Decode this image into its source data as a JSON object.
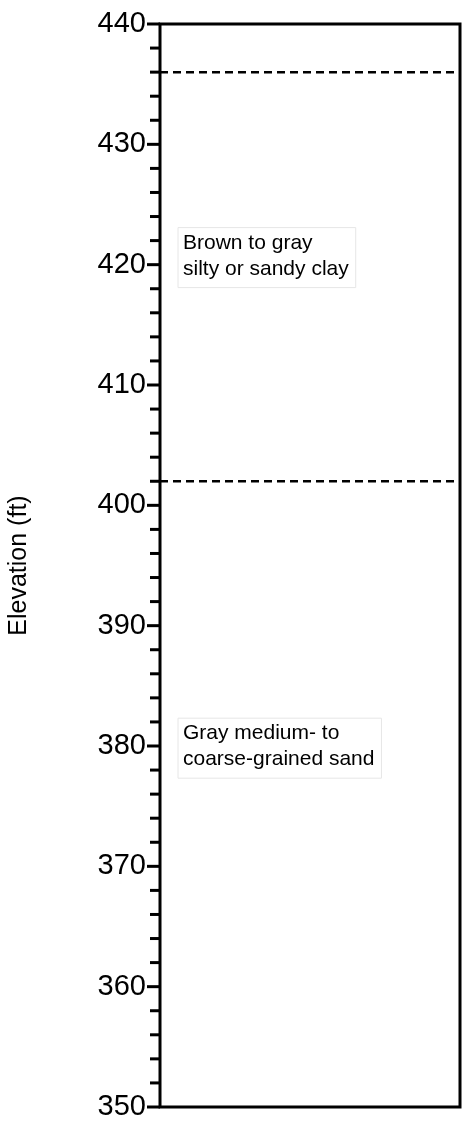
{
  "chart_data": {
    "type": "bar",
    "ylabel": "Elevation (ft)",
    "categories": [
      null
    ],
    "values": [
      null
    ],
    "ylim": [
      350,
      440
    ],
    "yticks": [
      350,
      {
        "value": 352,
        "label": null
      },
      {
        "value": 354,
        "label": null
      },
      {
        "value": 356,
        "label": null
      },
      {
        "value": 358,
        "label": null
      },
      360,
      {
        "value": 362,
        "label": null
      },
      {
        "value": 364,
        "label": null
      },
      {
        "value": 366,
        "label": null
      },
      {
        "value": 368,
        "label": null
      },
      370,
      {
        "value": 372,
        "label": null
      },
      {
        "value": 374,
        "label": null
      },
      {
        "value": 376,
        "label": null
      },
      {
        "value": 378,
        "label": null
      },
      380,
      {
        "value": 382,
        "label": null
      },
      {
        "value": 384,
        "label": null
      },
      {
        "value": 386,
        "label": null
      },
      {
        "value": 388,
        "label": null
      },
      390,
      {
        "value": 392,
        "label": null
      },
      {
        "value": 394,
        "label": null
      },
      {
        "value": 396,
        "label": null
      },
      {
        "value": 398,
        "label": null
      },
      400,
      {
        "value": 402,
        "label": null
      },
      {
        "value": 404,
        "label": null
      },
      {
        "value": 406,
        "label": null
      },
      {
        "value": 408,
        "label": null
      },
      410,
      {
        "value": 412,
        "label": null
      },
      {
        "value": 414,
        "label": null
      },
      {
        "value": 416,
        "label": null
      },
      {
        "value": 418,
        "label": null
      },
      420,
      {
        "value": 422,
        "label": null
      },
      {
        "value": 424,
        "label": null
      },
      {
        "value": 426,
        "label": null
      },
      {
        "value": 428,
        "label": null
      },
      430,
      {
        "value": 432,
        "label": null
      },
      {
        "value": 434,
        "label": null
      },
      {
        "value": 436,
        "label": null
      },
      {
        "value": 438,
        "label": null
      },
      440
    ],
    "ref_lines": [
      {
        "axis": "y",
        "value": 436,
        "color": "#000000",
        "line_style": "dashed"
      },
      {
        "axis": "y",
        "value": 402,
        "color": "#000000",
        "line_style": "dashed"
      }
    ],
    "annotations": [
      "Brown to gray\nsilty or sandy clay",
      "Gray medium- to\ncoarse-grained sand"
    ]
  }
}
